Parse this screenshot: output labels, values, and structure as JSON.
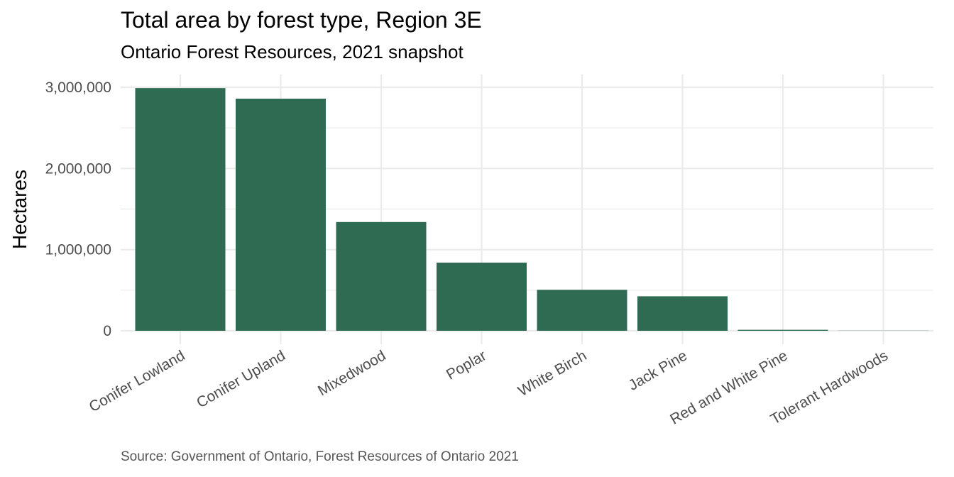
{
  "chart_data": {
    "type": "bar",
    "title": "Total area by forest type, Region 3E",
    "subtitle": "Ontario Forest Resources, 2021 snapshot",
    "caption": "Source: Government of Ontario, Forest Resources of Ontario 2021",
    "xlabel": "",
    "ylabel": "Hectares",
    "categories": [
      "Conifer Lowland",
      "Conifer Upland",
      "Mixedwood",
      "Poplar",
      "White Birch",
      "Jack Pine",
      "Red and White Pine",
      "Tolerant Hardwoods"
    ],
    "values": [
      2990000,
      2860000,
      1340000,
      840000,
      505000,
      425000,
      12000,
      1500
    ],
    "ylim": [
      0,
      3000000
    ],
    "yticks": [
      0,
      1000000,
      2000000,
      3000000
    ],
    "ytick_labels": [
      "0",
      "1,000,000",
      "2,000,000",
      "3,000,000"
    ],
    "grid": true,
    "bar_color": "#2e6b52",
    "grid_color": "#ebebeb"
  }
}
